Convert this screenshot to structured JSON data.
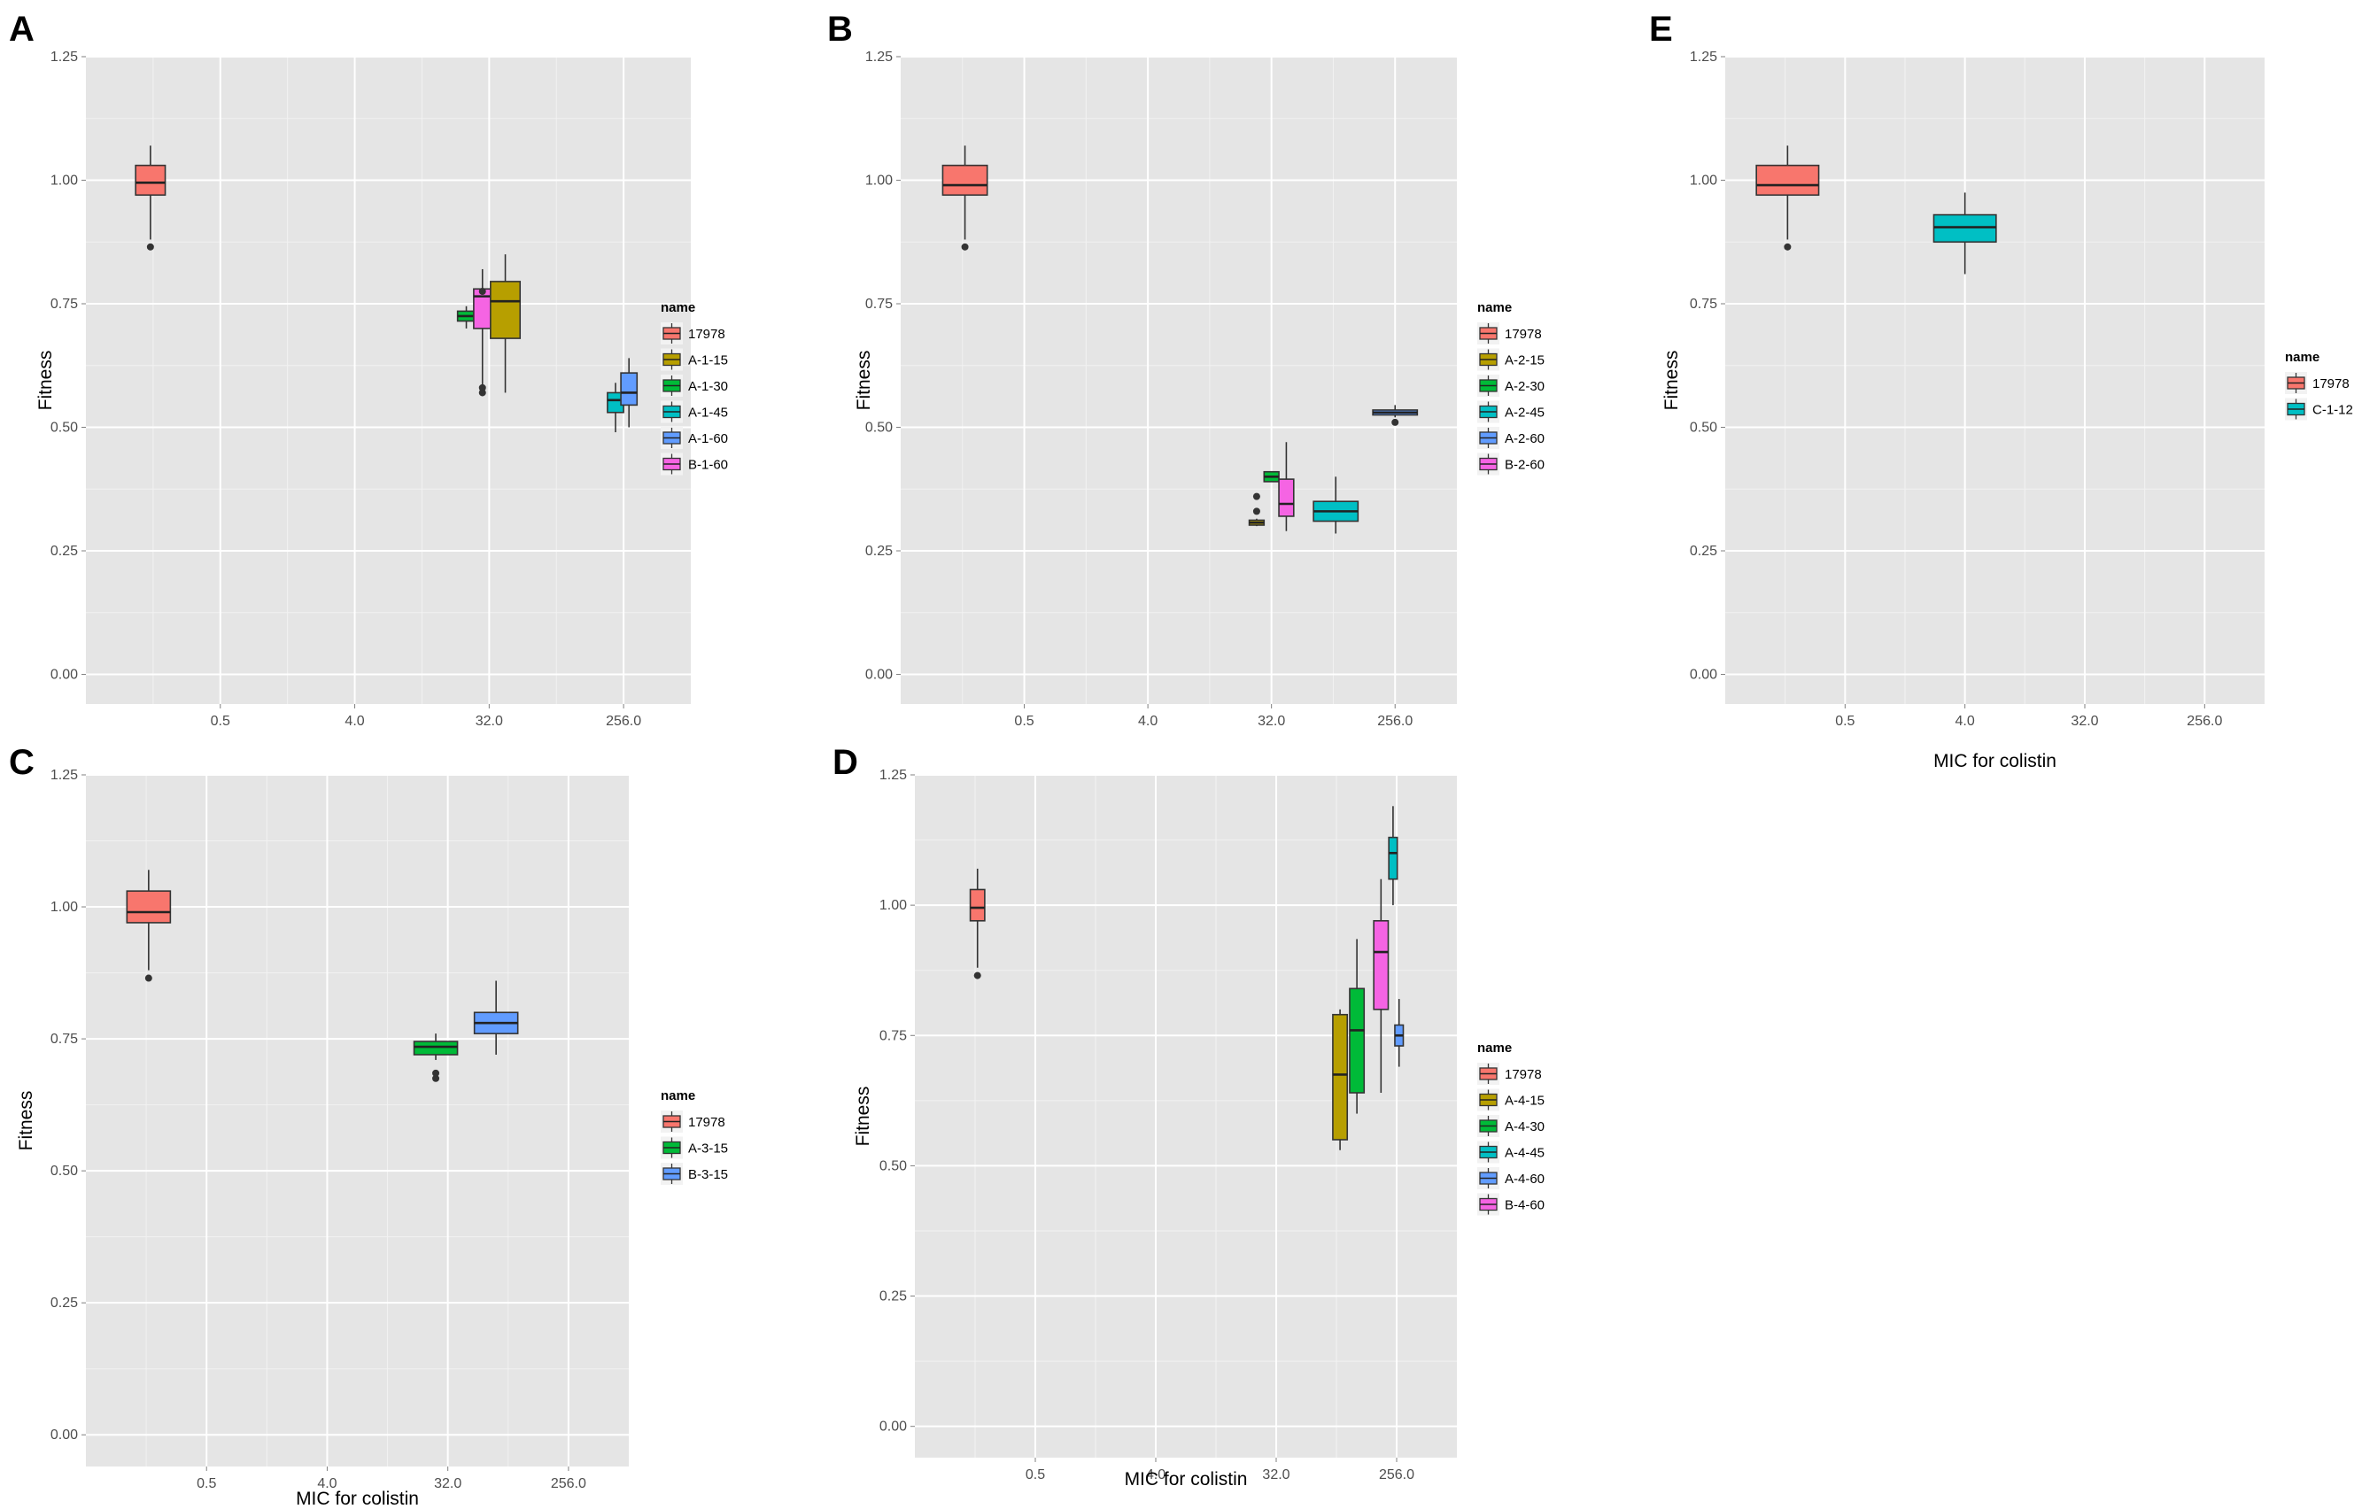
{
  "chart_data": [
    {
      "panel": "A",
      "type": "boxplot",
      "ylabel": "Fitness",
      "xlabel": "",
      "x_ticks": [
        "0.5",
        "4.0",
        "32.0",
        "256.0"
      ],
      "y_ticks": [
        "0.00",
        "0.25",
        "0.50",
        "0.75",
        "1.00",
        "1.25"
      ],
      "ylim": [
        -0.06,
        1.25
      ],
      "legend_title": "name",
      "legend": [
        {
          "name": "17978",
          "color": "#F8766D"
        },
        {
          "name": "A-1-15",
          "color": "#B79F00"
        },
        {
          "name": "A-1-30",
          "color": "#00BA38"
        },
        {
          "name": "A-1-45",
          "color": "#00BFC4"
        },
        {
          "name": "A-1-60",
          "color": "#619CFF"
        },
        {
          "name": "B-1-60",
          "color": "#F564E3"
        }
      ],
      "boxes": [
        {
          "name": "17978",
          "x": -0.52,
          "width": 0.22,
          "lower_whisker": 0.88,
          "q1": 0.97,
          "median": 0.995,
          "q3": 1.03,
          "upper_whisker": 1.07,
          "outliers": [
            0.865
          ]
        },
        {
          "name": "A-1-30",
          "x": 1.83,
          "width": 0.13,
          "lower_whisker": 0.7,
          "q1": 0.715,
          "median": 0.725,
          "q3": 0.735,
          "upper_whisker": 0.745,
          "outliers": []
        },
        {
          "name": "B-1-60",
          "x": 1.95,
          "width": 0.13,
          "lower_whisker": 0.58,
          "q1": 0.7,
          "median": 0.765,
          "q3": 0.78,
          "upper_whisker": 0.82,
          "outliers": [
            0.57,
            0.58,
            0.775
          ]
        },
        {
          "name": "A-1-15",
          "x": 2.12,
          "width": 0.22,
          "lower_whisker": 0.57,
          "q1": 0.68,
          "median": 0.755,
          "q3": 0.795,
          "upper_whisker": 0.85,
          "outliers": []
        },
        {
          "name": "A-1-45",
          "x": 2.94,
          "width": 0.12,
          "lower_whisker": 0.49,
          "q1": 0.53,
          "median": 0.555,
          "q3": 0.57,
          "upper_whisker": 0.59,
          "outliers": []
        },
        {
          "name": "A-1-60",
          "x": 3.04,
          "width": 0.12,
          "lower_whisker": 0.5,
          "q1": 0.545,
          "median": 0.57,
          "q3": 0.61,
          "upper_whisker": 0.64,
          "outliers": []
        }
      ]
    },
    {
      "panel": "B",
      "type": "boxplot",
      "ylabel": "Fitness",
      "xlabel": "",
      "x_ticks": [
        "0.5",
        "4.0",
        "32.0",
        "256.0"
      ],
      "y_ticks": [
        "0.00",
        "0.25",
        "0.50",
        "0.75",
        "1.00",
        "1.25"
      ],
      "ylim": [
        -0.06,
        1.25
      ],
      "legend_title": "name",
      "legend": [
        {
          "name": "17978",
          "color": "#F8766D"
        },
        {
          "name": "A-2-15",
          "color": "#B79F00"
        },
        {
          "name": "A-2-30",
          "color": "#00BA38"
        },
        {
          "name": "A-2-45",
          "color": "#00BFC4"
        },
        {
          "name": "A-2-60",
          "color": "#619CFF"
        },
        {
          "name": "B-2-60",
          "color": "#F564E3"
        }
      ],
      "boxes": [
        {
          "name": "17978",
          "x": -0.48,
          "width": 0.36,
          "lower_whisker": 0.88,
          "q1": 0.97,
          "median": 0.99,
          "q3": 1.03,
          "upper_whisker": 1.07,
          "outliers": [
            0.865
          ]
        },
        {
          "name": "A-2-15",
          "x": 1.88,
          "width": 0.12,
          "lower_whisker": 0.3,
          "q1": 0.302,
          "median": 0.307,
          "q3": 0.312,
          "upper_whisker": 0.315,
          "outliers": [
            0.33,
            0.36
          ]
        },
        {
          "name": "A-2-30",
          "x": 2.0,
          "width": 0.12,
          "lower_whisker": 0.39,
          "q1": 0.39,
          "median": 0.4,
          "q3": 0.41,
          "upper_whisker": 0.41,
          "outliers": []
        },
        {
          "name": "B-2-60",
          "x": 2.12,
          "width": 0.12,
          "lower_whisker": 0.29,
          "q1": 0.32,
          "median": 0.345,
          "q3": 0.395,
          "upper_whisker": 0.47,
          "outliers": []
        },
        {
          "name": "A-2-45",
          "x": 2.52,
          "width": 0.36,
          "lower_whisker": 0.285,
          "q1": 0.31,
          "median": 0.33,
          "q3": 0.35,
          "upper_whisker": 0.4,
          "outliers": []
        },
        {
          "name": "A-2-60",
          "x": 3.0,
          "width": 0.36,
          "lower_whisker": 0.52,
          "q1": 0.525,
          "median": 0.53,
          "q3": 0.535,
          "upper_whisker": 0.545,
          "outliers": [
            0.51
          ]
        }
      ]
    },
    {
      "panel": "C",
      "type": "boxplot",
      "ylabel": "Fitness",
      "xlabel": "MIC for colistin",
      "x_ticks": [
        "0.5",
        "4.0",
        "32.0",
        "256.0"
      ],
      "y_ticks": [
        "0.00",
        "0.25",
        "0.50",
        "0.75",
        "1.00",
        "1.25"
      ],
      "ylim": [
        -0.06,
        1.25
      ],
      "legend_title": "name",
      "legend": [
        {
          "name": "17978",
          "color": "#F8766D"
        },
        {
          "name": "A-3-15",
          "color": "#00BA38"
        },
        {
          "name": "B-3-15",
          "color": "#619CFF"
        }
      ],
      "boxes": [
        {
          "name": "17978",
          "x": -0.48,
          "width": 0.36,
          "lower_whisker": 0.88,
          "q1": 0.97,
          "median": 0.99,
          "q3": 1.03,
          "upper_whisker": 1.07,
          "outliers": [
            0.865
          ]
        },
        {
          "name": "A-3-15",
          "x": 1.9,
          "width": 0.36,
          "lower_whisker": 0.71,
          "q1": 0.72,
          "median": 0.735,
          "q3": 0.745,
          "upper_whisker": 0.76,
          "outliers": [
            0.675,
            0.685
          ]
        },
        {
          "name": "B-3-15",
          "x": 2.4,
          "width": 0.36,
          "lower_whisker": 0.72,
          "q1": 0.76,
          "median": 0.78,
          "q3": 0.8,
          "upper_whisker": 0.86,
          "outliers": []
        }
      ]
    },
    {
      "panel": "D",
      "type": "boxplot",
      "ylabel": "Fitness",
      "xlabel": "MIC for colistin",
      "x_ticks": [
        "0.5",
        "4.0",
        "32.0",
        "256.0"
      ],
      "y_ticks": [
        "0.00",
        "0.25",
        "0.50",
        "0.75",
        "1.00",
        "1.25"
      ],
      "ylim": [
        -0.06,
        1.25
      ],
      "legend_title": "name",
      "legend": [
        {
          "name": "17978",
          "color": "#F8766D"
        },
        {
          "name": "A-4-15",
          "color": "#B79F00"
        },
        {
          "name": "A-4-30",
          "color": "#00BA38"
        },
        {
          "name": "A-4-45",
          "color": "#00BFC4"
        },
        {
          "name": "A-4-60",
          "color": "#619CFF"
        },
        {
          "name": "B-4-60",
          "color": "#F564E3"
        }
      ],
      "boxes": [
        {
          "name": "17978",
          "x": -0.48,
          "width": 0.12,
          "lower_whisker": 0.88,
          "q1": 0.97,
          "median": 0.995,
          "q3": 1.03,
          "upper_whisker": 1.07,
          "outliers": [
            0.865
          ]
        },
        {
          "name": "A-4-15",
          "x": 2.53,
          "width": 0.12,
          "lower_whisker": 0.53,
          "q1": 0.55,
          "median": 0.675,
          "q3": 0.79,
          "upper_whisker": 0.8,
          "outliers": []
        },
        {
          "name": "A-4-30",
          "x": 2.67,
          "width": 0.12,
          "lower_whisker": 0.6,
          "q1": 0.64,
          "median": 0.76,
          "q3": 0.84,
          "upper_whisker": 0.935,
          "outliers": []
        },
        {
          "name": "B-4-60",
          "x": 2.87,
          "width": 0.12,
          "lower_whisker": 0.64,
          "q1": 0.8,
          "median": 0.91,
          "q3": 0.97,
          "upper_whisker": 1.05,
          "outliers": []
        },
        {
          "name": "A-4-45",
          "x": 2.97,
          "width": 0.07,
          "lower_whisker": 1.0,
          "q1": 1.05,
          "median": 1.1,
          "q3": 1.13,
          "upper_whisker": 1.19,
          "outliers": []
        },
        {
          "name": "A-4-60",
          "x": 3.02,
          "width": 0.07,
          "lower_whisker": 0.69,
          "q1": 0.73,
          "median": 0.75,
          "q3": 0.77,
          "upper_whisker": 0.82,
          "outliers": []
        }
      ]
    },
    {
      "panel": "E",
      "type": "boxplot",
      "ylabel": "Fitness",
      "xlabel": "MIC for colistin",
      "x_ticks": [
        "0.5",
        "4.0",
        "32.0",
        "256.0"
      ],
      "y_ticks": [
        "0.00",
        "0.25",
        "0.50",
        "0.75",
        "1.00",
        "1.25"
      ],
      "ylim": [
        -0.06,
        1.25
      ],
      "legend_title": "name",
      "legend": [
        {
          "name": "17978",
          "color": "#F8766D"
        },
        {
          "name": "C-1-12",
          "color": "#00BFC4"
        }
      ],
      "boxes": [
        {
          "name": "17978",
          "x": -0.48,
          "width": 0.52,
          "lower_whisker": 0.88,
          "q1": 0.97,
          "median": 0.99,
          "q3": 1.03,
          "upper_whisker": 1.07,
          "outliers": [
            0.865
          ]
        },
        {
          "name": "C-1-12",
          "x": 1.0,
          "width": 0.52,
          "lower_whisker": 0.81,
          "q1": 0.875,
          "median": 0.905,
          "q3": 0.93,
          "upper_whisker": 0.975,
          "outliers": []
        }
      ]
    }
  ]
}
